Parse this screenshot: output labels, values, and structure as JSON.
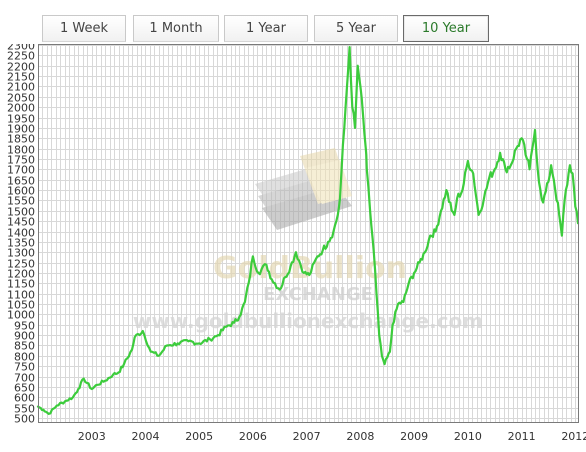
{
  "tabs": [
    {
      "label": "1 Week"
    },
    {
      "label": "1 Month"
    },
    {
      "label": "1 Year"
    },
    {
      "label": "5 Year"
    },
    {
      "label": "10 Year"
    }
  ],
  "active_tab": "10 Year",
  "watermark": {
    "brand": "GoldBullion",
    "brand_sub": "EXCHANGE",
    "url": "www.goldbullionexchange.com"
  },
  "colors": {
    "line": "#3ccc3c",
    "grid": "#d8d8d8",
    "active_tab_text": "#2b7a2b"
  },
  "chart_data": {
    "type": "line",
    "ylim": [
      500,
      2300
    ],
    "y_ticks": [
      500,
      550,
      600,
      650,
      700,
      750,
      800,
      850,
      900,
      950,
      1000,
      1050,
      1100,
      1150,
      1200,
      1250,
      1300,
      1350,
      1400,
      1450,
      1500,
      1550,
      1600,
      1650,
      1700,
      1750,
      1800,
      1850,
      1900,
      1950,
      2000,
      2050,
      2100,
      2150,
      2200,
      2250,
      2300
    ],
    "x_ticks": [
      "2003",
      "2004",
      "2005",
      "2006",
      "2007",
      "2008",
      "2009",
      "2010",
      "2011",
      "2012"
    ],
    "xlim": [
      2002.5,
      2012.55
    ],
    "grid": true,
    "series": [
      {
        "x": [
          2002.5,
          2002.6,
          2002.7,
          2002.85,
          2003.0,
          2003.15,
          2003.25,
          2003.35,
          2003.5,
          2003.6,
          2003.75,
          2003.9,
          2004.0,
          2004.1,
          2004.25,
          2004.3,
          2004.45,
          2004.6,
          2004.75,
          2004.9,
          2005.1,
          2005.3,
          2005.5,
          2005.7,
          2005.85,
          2006.0,
          2006.15,
          2006.25,
          2006.35,
          2006.42,
          2006.5,
          2006.6,
          2006.75,
          2006.85,
          2007.0,
          2007.1,
          2007.2,
          2007.3,
          2007.45,
          2007.55,
          2007.7,
          2007.8,
          2007.9,
          2008.0,
          2008.08,
          2008.12,
          2008.15,
          2008.2,
          2008.25,
          2008.3,
          2008.35,
          2008.4,
          2008.45,
          2008.5,
          2008.6,
          2008.62,
          2008.68,
          2008.75,
          2008.8,
          2008.85,
          2008.9,
          2008.95,
          2009.05,
          2009.1,
          2009.2,
          2009.3,
          2009.4,
          2009.5,
          2009.6,
          2009.7,
          2009.8,
          2009.9,
          2010.0,
          2010.1,
          2010.2,
          2010.25,
          2010.3,
          2010.4,
          2010.5,
          2010.6,
          2010.7,
          2010.8,
          2010.9,
          2011.0,
          2011.1,
          2011.2,
          2011.3,
          2011.4,
          2011.5,
          2011.6,
          2011.65,
          2011.7,
          2011.75,
          2011.8,
          2011.85,
          2011.9,
          2012.0,
          2012.05,
          2012.1,
          2012.2,
          2012.25,
          2012.3,
          2012.4,
          2012.45,
          2012.5,
          2012.55
        ],
        "y": [
          555,
          540,
          520,
          560,
          580,
          600,
          640,
          690,
          640,
          660,
          680,
          710,
          720,
          760,
          830,
          890,
          920,
          820,
          800,
          850,
          860,
          870,
          860,
          880,
          900,
          940,
          960,
          990,
          1060,
          1150,
          1280,
          1200,
          1240,
          1170,
          1120,
          1180,
          1230,
          1300,
          1200,
          1190,
          1280,
          1310,
          1350,
          1400,
          1480,
          1560,
          1700,
          1900,
          2100,
          2290,
          2000,
          1900,
          2200,
          2100,
          1800,
          1700,
          1500,
          1300,
          1100,
          900,
          800,
          760,
          820,
          950,
          1050,
          1060,
          1150,
          1200,
          1250,
          1300,
          1380,
          1400,
          1500,
          1600,
          1500,
          1480,
          1560,
          1600,
          1740,
          1680,
          1480,
          1560,
          1660,
          1700,
          1780,
          1700,
          1720,
          1800,
          1850,
          1750,
          1700,
          1800,
          1890,
          1700,
          1600,
          1540,
          1640,
          1720,
          1650,
          1480,
          1380,
          1550,
          1720,
          1680,
          1520,
          1440
        ]
      }
    ]
  }
}
